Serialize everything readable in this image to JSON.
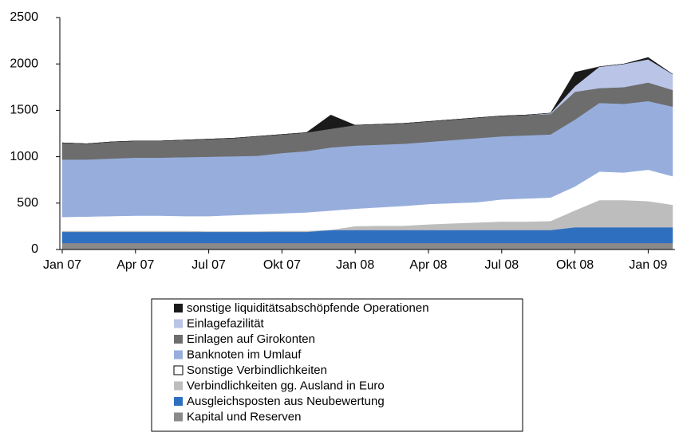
{
  "chart_data": {
    "type": "stacked_area",
    "categories": [
      "Jan 07",
      null,
      null,
      "Apr 07",
      null,
      null,
      "Jul 07",
      null,
      null,
      "Okt 07",
      null,
      null,
      "Jan 08",
      null,
      null,
      "Apr 08",
      null,
      null,
      "Jul 08",
      null,
      null,
      "Okt 08",
      null,
      null,
      "Jan 09",
      null
    ],
    "ylim": [
      0,
      2500
    ],
    "yticks": [
      0,
      500,
      1000,
      1500,
      2000,
      2500
    ],
    "grid": false,
    "series": [
      {
        "name": "Kapital und Reserven",
        "color": "#8a8a8a",
        "values": [
          70,
          70,
          70,
          70,
          70,
          70,
          70,
          70,
          70,
          70,
          70,
          70,
          70,
          70,
          70,
          70,
          70,
          70,
          70,
          70,
          70,
          70,
          70,
          70,
          70,
          70
        ]
      },
      {
        "name": "Ausgleichsposten aus Neubewertung",
        "color": "#2f6fbf",
        "values": [
          120,
          120,
          120,
          120,
          120,
          120,
          120,
          120,
          120,
          120,
          120,
          140,
          140,
          140,
          140,
          140,
          140,
          140,
          140,
          140,
          140,
          170,
          170,
          170,
          170,
          170
        ]
      },
      {
        "name": "Verbindlichkeiten gg. Ausland in Euro",
        "color": "#bdbdbd",
        "values": [
          10,
          10,
          10,
          10,
          10,
          10,
          5,
          5,
          5,
          10,
          10,
          0,
          40,
          45,
          45,
          60,
          70,
          80,
          90,
          90,
          95,
          180,
          290,
          290,
          280,
          240
        ]
      },
      {
        "name": "Sonstige Verbindlichkeiten",
        "color": "#ffffff",
        "values": [
          150,
          155,
          160,
          165,
          165,
          160,
          165,
          175,
          185,
          190,
          200,
          210,
          190,
          200,
          215,
          220,
          220,
          220,
          240,
          250,
          255,
          260,
          310,
          300,
          340,
          310
        ]
      },
      {
        "name": "Banknoten im Umlauf",
        "color": "#97aedd",
        "values": [
          620,
          615,
          620,
          625,
          625,
          635,
          640,
          635,
          630,
          650,
          660,
          680,
          680,
          675,
          670,
          670,
          680,
          690,
          680,
          680,
          680,
          720,
          740,
          740,
          740,
          750
        ]
      },
      {
        "name": "Einlagen auf Girokonten",
        "color": "#6d6d6d",
        "values": [
          180,
          170,
          180,
          180,
          180,
          185,
          190,
          195,
          210,
          200,
          200,
          200,
          220,
          220,
          220,
          220,
          220,
          220,
          220,
          220,
          220,
          300,
          160,
          180,
          200,
          180
        ]
      },
      {
        "name": "Einlagefazilität",
        "color": "#b9c4e6",
        "values": [
          0,
          0,
          0,
          0,
          0,
          0,
          0,
          0,
          0,
          0,
          0,
          0,
          0,
          0,
          0,
          0,
          0,
          0,
          0,
          0,
          10,
          60,
          230,
          250,
          250,
          170
        ]
      },
      {
        "name": "sonstige liquiditätsabschöpfende Operationen",
        "color": "#1a1a1a",
        "values": [
          0,
          0,
          0,
          0,
          0,
          0,
          0,
          0,
          0,
          0,
          0,
          150,
          0,
          0,
          0,
          0,
          0,
          0,
          0,
          0,
          0,
          150,
          0,
          0,
          20,
          0
        ]
      }
    ]
  }
}
